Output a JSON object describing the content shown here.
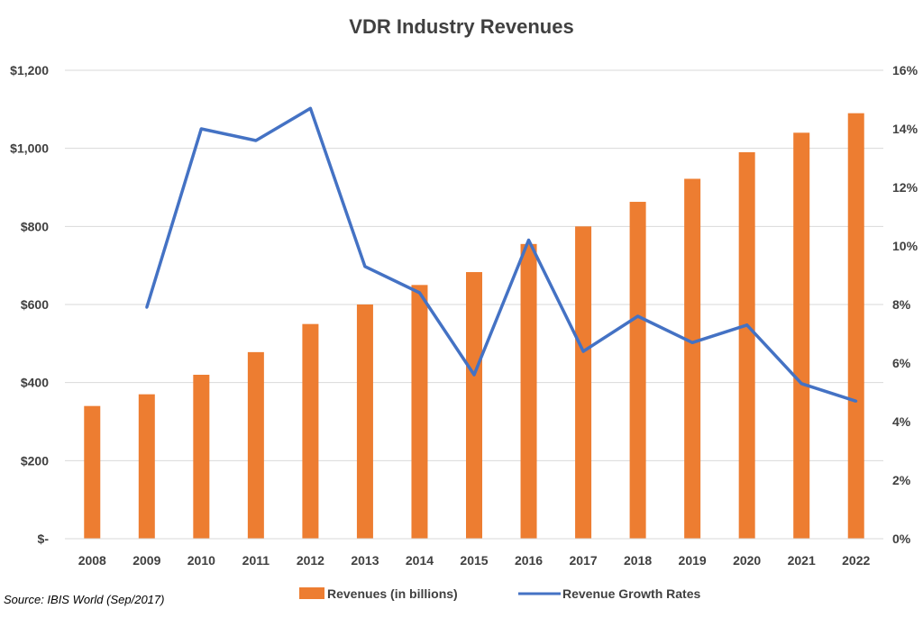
{
  "chart_data": {
    "type": "bar",
    "title": "VDR Industry Revenues",
    "categories": [
      "2008",
      "2009",
      "2010",
      "2011",
      "2012",
      "2013",
      "2014",
      "2015",
      "2016",
      "2017",
      "2018",
      "2019",
      "2020",
      "2021",
      "2022"
    ],
    "series": [
      {
        "name": "Revenues (in billions)",
        "type": "bar",
        "axis": "left",
        "color": "#ED7D31",
        "values": [
          340,
          370,
          420,
          478,
          550,
          600,
          650,
          683,
          755,
          800,
          863,
          922,
          990,
          1040,
          1090
        ]
      },
      {
        "name": "Revenue Growth Rates",
        "type": "line",
        "axis": "right",
        "color": "#4472C4",
        "values": [
          null,
          7.9,
          14.0,
          13.6,
          14.7,
          9.3,
          8.4,
          5.6,
          10.2,
          6.4,
          7.6,
          6.7,
          7.3,
          5.3,
          4.7
        ]
      }
    ],
    "y_left": {
      "ylim": [
        0,
        1200
      ],
      "ticks": [
        0,
        200,
        400,
        600,
        800,
        1000,
        1200
      ],
      "tick_labels": [
        "$-",
        "$200",
        "$400",
        "$600",
        "$800",
        "$1,000",
        "$1,200"
      ]
    },
    "y_right": {
      "ylim": [
        0,
        16
      ],
      "ticks": [
        0,
        2,
        4,
        6,
        8,
        10,
        12,
        14,
        16
      ],
      "tick_labels": [
        "0%",
        "2%",
        "4%",
        "6%",
        "8%",
        "10%",
        "12%",
        "14%",
        "16%"
      ]
    },
    "grid": true,
    "legend": "bottom",
    "source": "Source: IBIS World (Sep/2017)"
  }
}
